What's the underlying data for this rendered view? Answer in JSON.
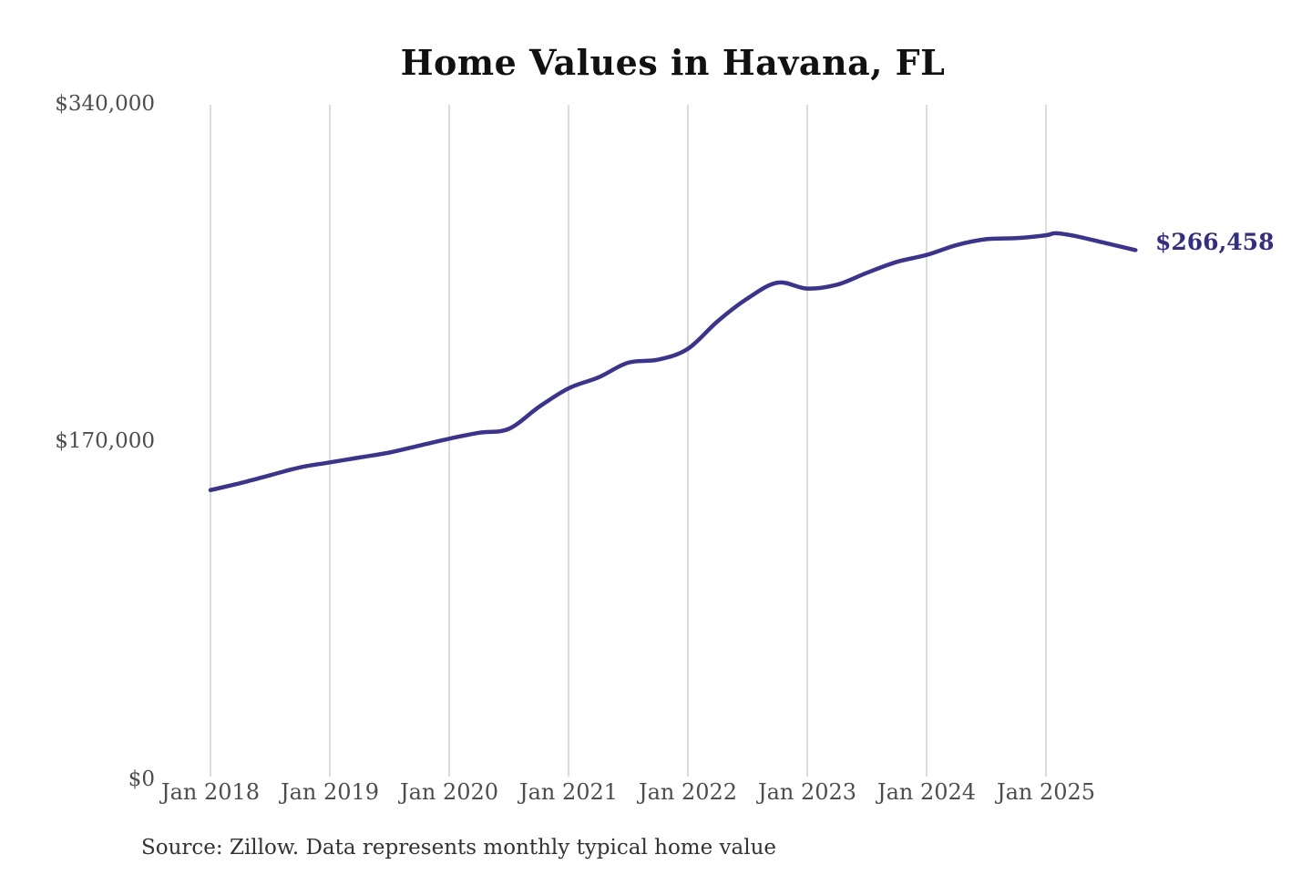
{
  "chart_data": {
    "type": "line",
    "title": "Home Values in Havana, FL",
    "source_note": "Source: Zillow. Data represents monthly typical home value",
    "series_name": "Monthly typical home value",
    "x": [
      "2018-01",
      "2018-04",
      "2018-07",
      "2018-10",
      "2019-01",
      "2019-04",
      "2019-07",
      "2019-10",
      "2020-01",
      "2020-04",
      "2020-07",
      "2020-10",
      "2021-01",
      "2021-04",
      "2021-07",
      "2021-10",
      "2022-01",
      "2022-04",
      "2022-07",
      "2022-10",
      "2023-01",
      "2023-04",
      "2023-07",
      "2023-10",
      "2024-01",
      "2024-04",
      "2024-07",
      "2024-10",
      "2025-01",
      "2025-02",
      "2025-04",
      "2025-07",
      "2025-10"
    ],
    "values": [
      145000,
      148500,
      152500,
      156500,
      159000,
      161500,
      164000,
      167500,
      171000,
      174000,
      176000,
      187000,
      196500,
      202000,
      209500,
      211000,
      216500,
      230500,
      242000,
      250000,
      247000,
      249000,
      255000,
      260500,
      264000,
      269000,
      272000,
      272500,
      274000,
      275000,
      273500,
      270000,
      266458
    ],
    "last_value": 266458,
    "end_label": "$266,458",
    "ylim": [
      0,
      340000
    ],
    "y_tick_labels": [
      "$0",
      "$170,000",
      "$340,000"
    ],
    "x_tick_labels": [
      "Jan 2018",
      "Jan 2019",
      "Jan 2020",
      "Jan 2021",
      "Jan 2022",
      "Jan 2023",
      "Jan 2024",
      "Jan 2025"
    ],
    "grid": "vertical-only",
    "legend": "none",
    "line_color": "#3a3391",
    "end_label_color": "#332d85",
    "grid_color": "#c9c9c9",
    "axis_text_color": "#4d4d4d",
    "title_color": "#111111"
  }
}
